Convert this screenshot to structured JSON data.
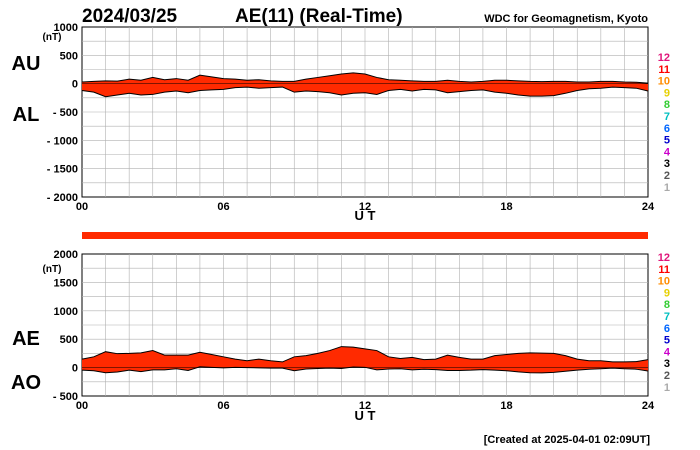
{
  "header": {
    "date": "2024/03/25",
    "title": "AE(11) (Real-Time)",
    "source": "WDC for Geomagnetism, Kyoto"
  },
  "footer": {
    "created": "[Created at 2025-04-01 02:09UT]"
  },
  "colors": {
    "fill": "#ff2a00",
    "stroke": "#000000",
    "grid": "#b0b0b0"
  },
  "chart_data": [
    {
      "type": "area",
      "name": "AU/AL",
      "side_labels": [
        "AU",
        "AL"
      ],
      "unit_label": "(nT)",
      "xlabel": "U T",
      "xlim": [
        0,
        24
      ],
      "x_ticks": [
        "00",
        "06",
        "12",
        "18",
        "24"
      ],
      "x_tick_values": [
        0,
        6,
        12,
        18,
        24
      ],
      "ylim": [
        -2000,
        1000
      ],
      "y_ticks": [
        "1000",
        "500",
        "0",
        "- 500",
        "- 1000",
        "- 1500",
        "- 2000"
      ],
      "y_tick_values": [
        1000,
        500,
        0,
        -500,
        -1000,
        -1500,
        -2000
      ],
      "station_numbers": [
        "12",
        "11",
        "10",
        "9",
        "8",
        "7",
        "6",
        "5",
        "4",
        "3",
        "2",
        "1"
      ],
      "series": [
        {
          "name": "AU",
          "x": [
            0,
            0.5,
            1,
            1.5,
            2,
            2.5,
            3,
            3.5,
            4,
            4.5,
            5,
            5.5,
            6,
            6.5,
            7,
            7.5,
            8,
            8.5,
            9,
            9.5,
            10,
            10.5,
            11,
            11.5,
            12,
            12.5,
            13,
            13.5,
            14,
            14.5,
            15,
            15.5,
            16,
            16.5,
            17,
            17.5,
            18,
            18.5,
            19,
            19.5,
            20,
            20.5,
            21,
            21.5,
            22,
            22.5,
            23,
            23.5,
            24
          ],
          "values": [
            30,
            40,
            50,
            45,
            80,
            60,
            110,
            70,
            90,
            60,
            150,
            120,
            90,
            80,
            60,
            70,
            50,
            40,
            40,
            80,
            110,
            140,
            170,
            190,
            170,
            110,
            70,
            60,
            50,
            40,
            40,
            60,
            40,
            30,
            40,
            60,
            60,
            50,
            40,
            35,
            40,
            40,
            30,
            30,
            40,
            40,
            30,
            25,
            10
          ]
        },
        {
          "name": "AL",
          "x": [
            0,
            0.5,
            1,
            1.5,
            2,
            2.5,
            3,
            3.5,
            4,
            4.5,
            5,
            5.5,
            6,
            6.5,
            7,
            7.5,
            8,
            8.5,
            9,
            9.5,
            10,
            10.5,
            11,
            11.5,
            12,
            12.5,
            13,
            13.5,
            14,
            14.5,
            15,
            15.5,
            16,
            16.5,
            17,
            17.5,
            18,
            18.5,
            19,
            19.5,
            20,
            20.5,
            21,
            21.5,
            22,
            22.5,
            23,
            23.5,
            24
          ],
          "values": [
            -120,
            -150,
            -230,
            -200,
            -170,
            -200,
            -190,
            -150,
            -130,
            -160,
            -120,
            -110,
            -100,
            -70,
            -60,
            -80,
            -70,
            -60,
            -150,
            -130,
            -140,
            -160,
            -200,
            -170,
            -160,
            -190,
            -120,
            -100,
            -130,
            -100,
            -110,
            -160,
            -140,
            -120,
            -110,
            -150,
            -170,
            -200,
            -220,
            -220,
            -210,
            -170,
            -120,
            -90,
            -80,
            -60,
            -70,
            -80,
            -130
          ]
        }
      ]
    },
    {
      "type": "area",
      "name": "AE/AO",
      "side_labels": [
        "AE",
        "AO"
      ],
      "unit_label": "(nT)",
      "xlabel": "U T",
      "xlim": [
        0,
        24
      ],
      "x_ticks": [
        "00",
        "06",
        "12",
        "18",
        "24"
      ],
      "x_tick_values": [
        0,
        6,
        12,
        18,
        24
      ],
      "ylim": [
        -500,
        2000
      ],
      "y_ticks": [
        "2000",
        "1500",
        "1000",
        "500",
        "0",
        "- 500"
      ],
      "y_tick_values": [
        2000,
        1500,
        1000,
        500,
        0,
        -500
      ],
      "station_numbers": [
        "12",
        "11",
        "10",
        "9",
        "8",
        "7",
        "6",
        "5",
        "4",
        "3",
        "2",
        "1"
      ],
      "series": [
        {
          "name": "AE",
          "x": [
            0,
            0.5,
            1,
            1.5,
            2,
            2.5,
            3,
            3.5,
            4,
            4.5,
            5,
            5.5,
            6,
            6.5,
            7,
            7.5,
            8,
            8.5,
            9,
            9.5,
            10,
            10.5,
            11,
            11.5,
            12,
            12.5,
            13,
            13.5,
            14,
            14.5,
            15,
            15.5,
            16,
            16.5,
            17,
            17.5,
            18,
            18.5,
            19,
            19.5,
            20,
            20.5,
            21,
            21.5,
            22,
            22.5,
            23,
            23.5,
            24
          ],
          "values": [
            150,
            190,
            280,
            245,
            250,
            260,
            300,
            220,
            220,
            220,
            270,
            230,
            190,
            150,
            120,
            150,
            120,
            100,
            190,
            210,
            250,
            300,
            370,
            360,
            330,
            300,
            190,
            160,
            180,
            140,
            150,
            220,
            180,
            150,
            150,
            210,
            230,
            250,
            260,
            255,
            250,
            210,
            150,
            120,
            120,
            100,
            100,
            105,
            140
          ]
        },
        {
          "name": "AO",
          "x": [
            0,
            0.5,
            1,
            1.5,
            2,
            2.5,
            3,
            3.5,
            4,
            4.5,
            5,
            5.5,
            6,
            6.5,
            7,
            7.5,
            8,
            8.5,
            9,
            9.5,
            10,
            10.5,
            11,
            11.5,
            12,
            12.5,
            13,
            13.5,
            14,
            14.5,
            15,
            15.5,
            16,
            16.5,
            17,
            17.5,
            18,
            18.5,
            19,
            19.5,
            20,
            20.5,
            21,
            21.5,
            22,
            22.5,
            23,
            23.5,
            24
          ],
          "values": [
            -45,
            -55,
            -90,
            -78,
            -45,
            -70,
            -40,
            -40,
            -20,
            -50,
            15,
            5,
            -5,
            5,
            0,
            -5,
            -10,
            -10,
            -55,
            -25,
            -15,
            -10,
            -15,
            10,
            5,
            -40,
            -25,
            -20,
            -40,
            -30,
            -35,
            -50,
            -50,
            -45,
            -35,
            -45,
            -55,
            -75,
            -90,
            -92,
            -85,
            -65,
            -45,
            -30,
            -20,
            -10,
            -20,
            -28,
            -60
          ]
        }
      ]
    }
  ]
}
